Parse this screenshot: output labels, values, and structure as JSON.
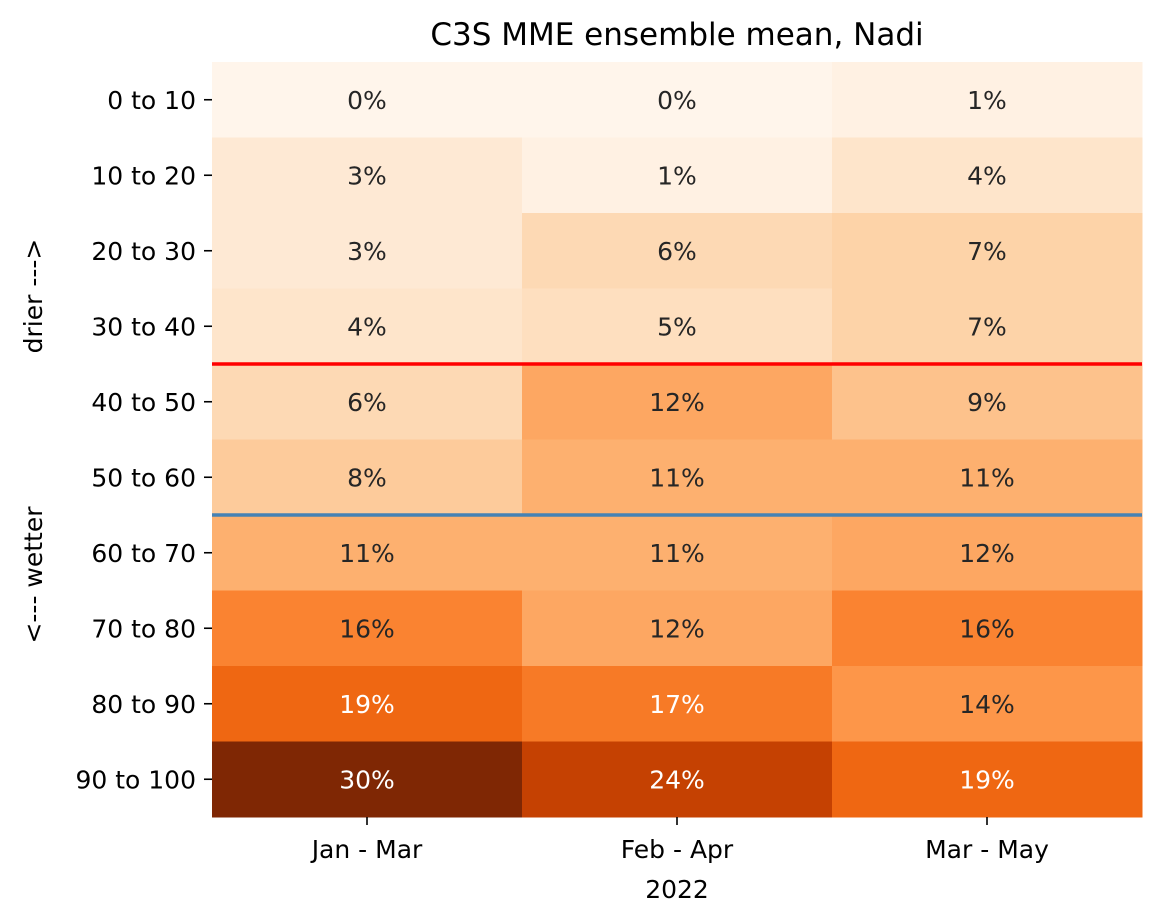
{
  "chart_data": {
    "type": "heatmap",
    "title": "C3S MME ensemble mean, Nadi",
    "xlabel": "2022",
    "ylabel_top": "drier --->",
    "ylabel_bottom": "<--- wetter",
    "x_categories": [
      "Jan - Mar",
      "Feb - Apr",
      "Mar - May"
    ],
    "y_categories": [
      "0 to 10",
      "10 to 20",
      "20 to 30",
      "30 to 40",
      "40 to 50",
      "50 to 60",
      "60 to 70",
      "70 to 80",
      "80 to 90",
      "90 to 100"
    ],
    "values": [
      [
        0,
        0,
        1
      ],
      [
        3,
        1,
        4
      ],
      [
        3,
        6,
        7
      ],
      [
        4,
        5,
        7
      ],
      [
        6,
        12,
        9
      ],
      [
        8,
        11,
        11
      ],
      [
        11,
        11,
        12
      ],
      [
        16,
        12,
        16
      ],
      [
        19,
        17,
        14
      ],
      [
        30,
        24,
        19
      ]
    ],
    "value_suffix": "%",
    "colormap": "Oranges",
    "vmin": 0,
    "vmax": 30,
    "reference_lines": [
      {
        "between_rows": [
          3,
          4
        ],
        "color": "#ff0000"
      },
      {
        "between_rows": [
          5,
          6
        ],
        "color": "#4682b4"
      }
    ],
    "colorbar": false
  }
}
